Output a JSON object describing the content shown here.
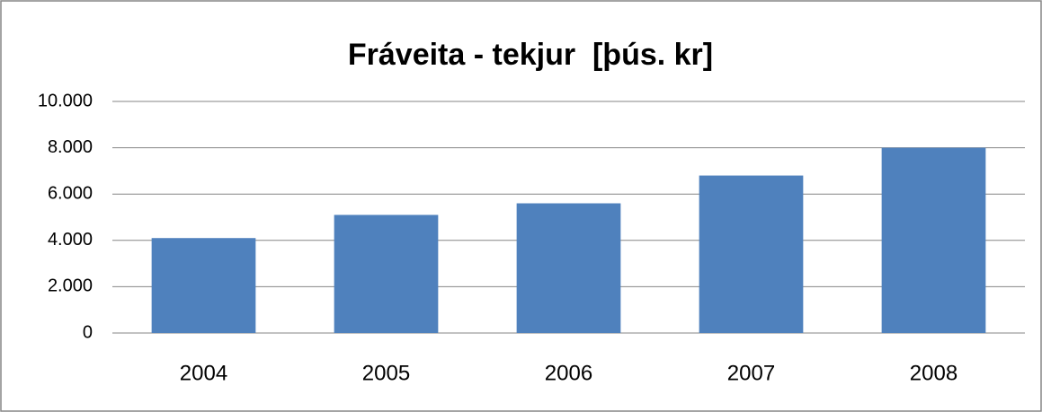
{
  "chart_data": {
    "type": "bar",
    "title": "Fráveita - tekjur  [þús. kr]",
    "categories": [
      "2004",
      "2005",
      "2006",
      "2007",
      "2008"
    ],
    "values": [
      4100,
      5100,
      5600,
      6800,
      8000
    ],
    "color": "#4f81bd",
    "ylim": [
      0,
      10000
    ],
    "yticks": [
      0,
      {
        "value": 2000,
        "label": "2.000"
      },
      {
        "value": 4000,
        "label": "4.000"
      },
      {
        "value": 6000,
        "label": "6.000"
      },
      {
        "value": 8000,
        "label": "8.000"
      },
      {
        "value": 10000,
        "label": "10.000"
      }
    ],
    "grid": true
  }
}
